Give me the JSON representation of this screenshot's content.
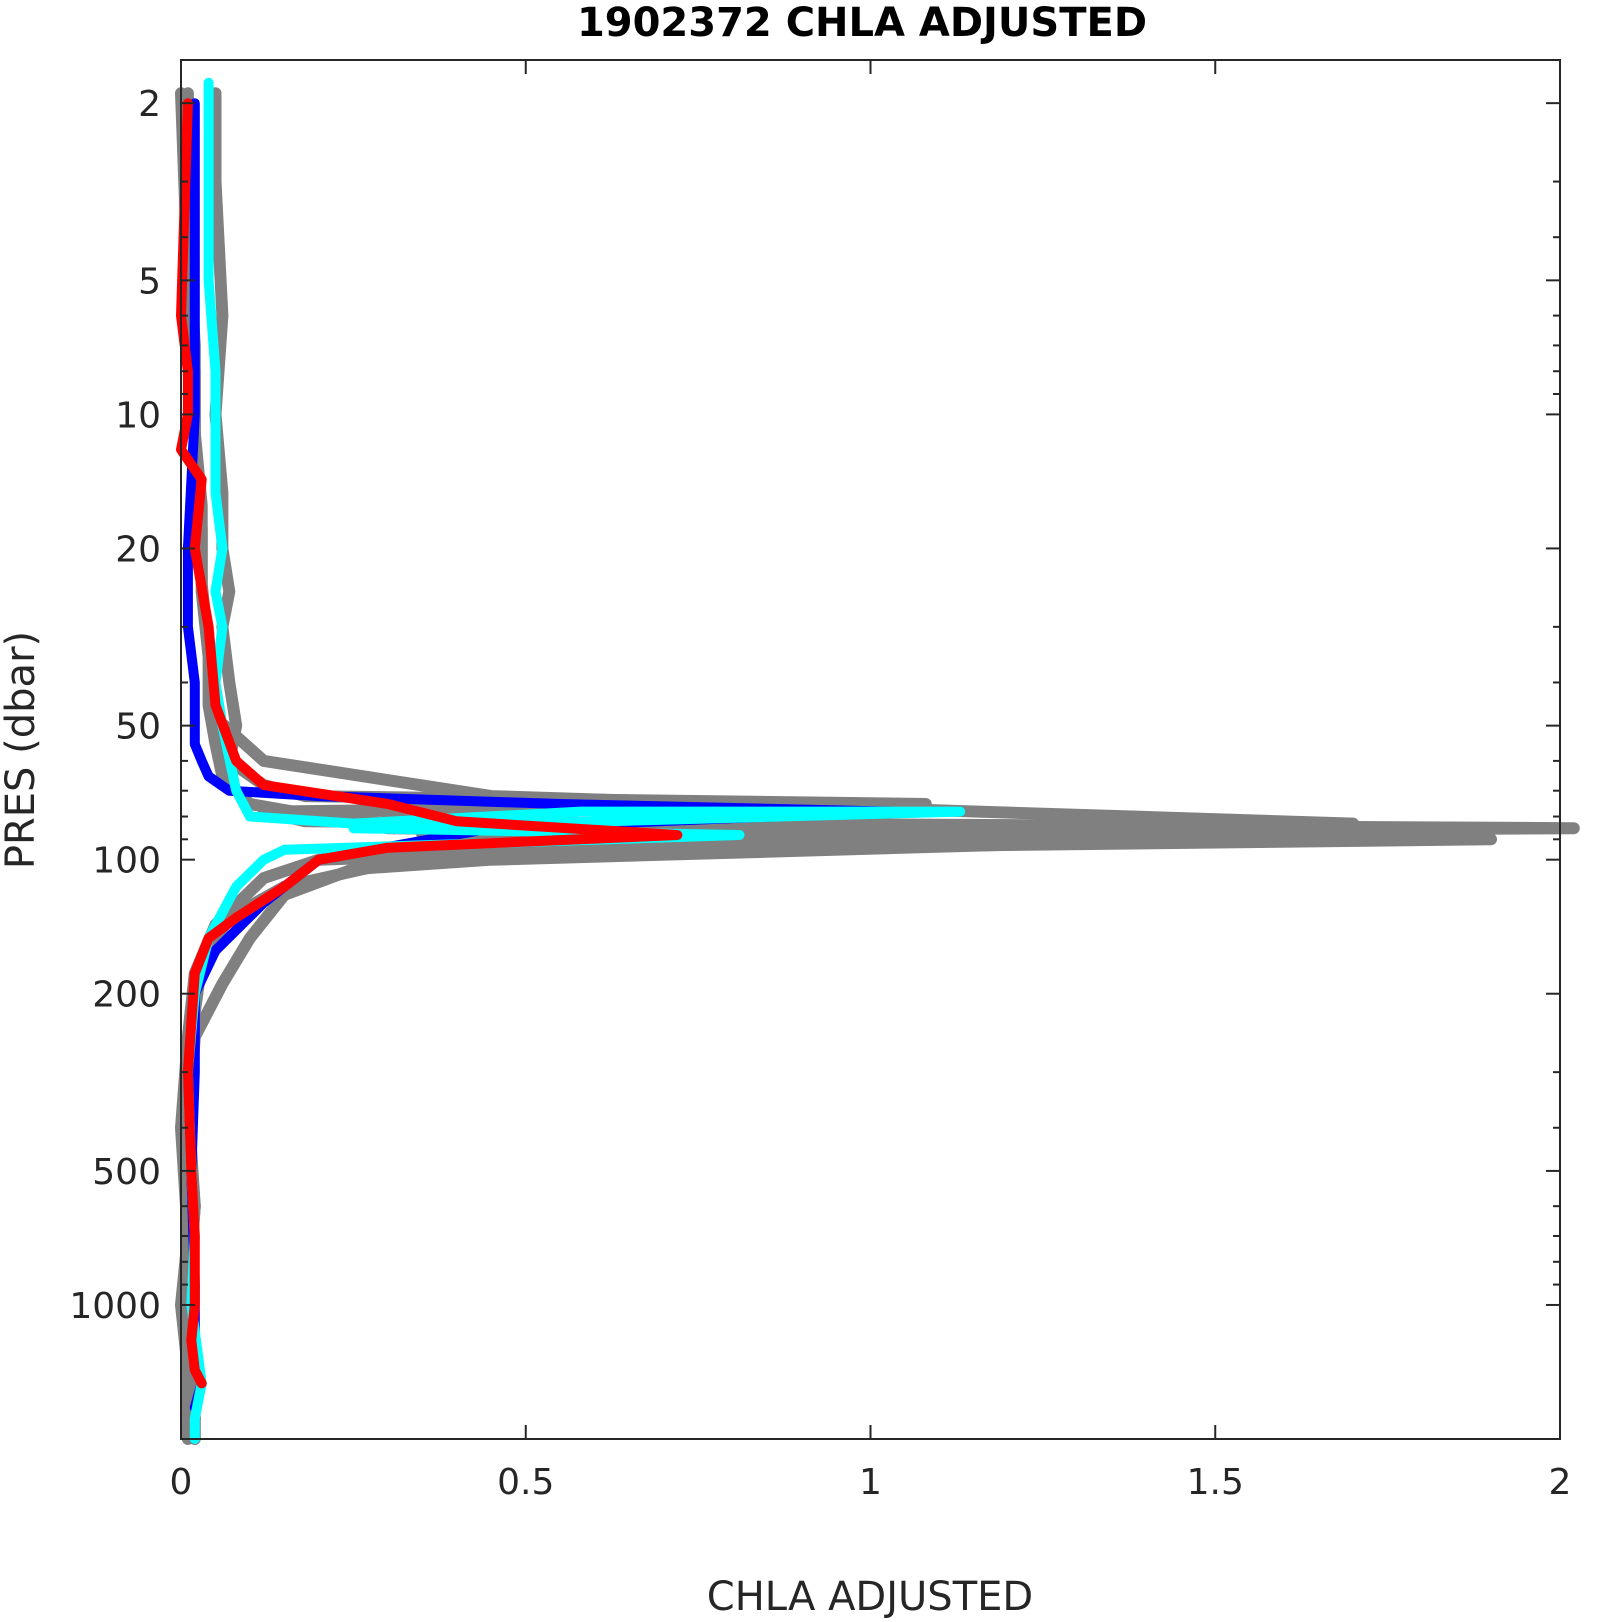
{
  "chart_data": {
    "type": "line",
    "title": "1902372  CHLA ADJUSTED",
    "xlabel": "CHLA ADJUSTED",
    "ylabel": "PRES (dbar)",
    "xlim": [
      0,
      2
    ],
    "ylim": [
      1.6,
      2000
    ],
    "yscale": "log",
    "y_reversed": true,
    "grid": false,
    "legend": "none",
    "xticks": [
      0,
      0.5,
      1,
      1.5,
      2
    ],
    "xtick_labels": [
      "0",
      "0.5",
      "1",
      "1.5",
      "2"
    ],
    "yticks": [
      2,
      5,
      10,
      20,
      50,
      100,
      200,
      500,
      1000
    ],
    "ytick_labels": [
      "2",
      "5",
      "10",
      "20",
      "50",
      "100",
      "200",
      "500",
      "1000"
    ],
    "colors": {
      "gray": "#808080",
      "blue": "#0000ff",
      "cyan": "#00ffff",
      "red": "#ff0000",
      "axis": "#262626"
    },
    "series": [
      {
        "color": "#808080",
        "width": 12,
        "x": [
          0.05,
          0.05,
          0.06,
          0.05,
          0.06,
          0.06,
          0.07,
          0.06,
          0.07,
          0.08,
          0.07,
          0.12,
          0.18,
          1.08,
          0.12,
          0.18,
          2.02,
          0.35,
          1.26,
          0.45,
          0.25,
          0.15,
          0.1,
          0.06,
          0.02,
          0.01,
          0.02,
          0.01,
          0.02,
          0.015,
          0.02,
          0.02
        ],
        "y": [
          1.9,
          3,
          6,
          10,
          15,
          20,
          25,
          30,
          40,
          50,
          60,
          68,
          72,
          75,
          78,
          82,
          85,
          88,
          92,
          100,
          105,
          120,
          150,
          190,
          250,
          400,
          600,
          900,
          1200,
          1600,
          1800,
          2000
        ]
      },
      {
        "color": "#808080",
        "width": 12,
        "x": [
          0.0,
          0.01,
          0.02,
          0.02,
          0.03,
          0.03,
          0.04,
          0.04,
          0.05,
          0.06,
          0.1,
          0.3,
          1.9,
          0.6,
          0.2,
          0.12,
          0.05,
          0.02,
          0.01,
          0.0,
          0.01,
          0.0,
          0.01,
          0.01
        ],
        "y": [
          1.9,
          5,
          8,
          12,
          18,
          25,
          35,
          45,
          55,
          65,
          75,
          85,
          90,
          95,
          100,
          110,
          140,
          180,
          250,
          400,
          700,
          1000,
          1400,
          2000
        ]
      },
      {
        "color": "#808080",
        "width": 12,
        "x": [
          0.01,
          0.01,
          0.02,
          0.02,
          0.03,
          0.03,
          0.04,
          0.05,
          0.12,
          0.45,
          1.7,
          0.68,
          0.3,
          0.15,
          0.07,
          0.03,
          0.02,
          0.01,
          0.02,
          0.01,
          0.02
        ],
        "y": [
          1.9,
          4,
          7,
          11,
          16,
          24,
          34,
          48,
          60,
          72,
          83,
          94,
          102,
          115,
          135,
          170,
          220,
          350,
          600,
          1000,
          1800
        ]
      },
      {
        "color": "#0000ff",
        "width": 10,
        "x": [
          0.02,
          0.02,
          0.02,
          0.01,
          0.01,
          0.02,
          0.02,
          0.02,
          0.03,
          0.04,
          0.07,
          0.2,
          0.55,
          1.03,
          0.45,
          0.2,
          0.12,
          0.05,
          0.02,
          0.02,
          0.015,
          0.02,
          0.02,
          0.03,
          0.02
        ],
        "y": [
          2,
          5,
          10,
          20,
          30,
          40,
          50,
          55,
          60,
          65,
          70,
          72,
          75,
          78,
          85,
          100,
          125,
          160,
          200,
          300,
          500,
          900,
          1300,
          1500,
          1700
        ]
      },
      {
        "color": "#00ffff",
        "width": 10,
        "x": [
          0.04,
          0.04,
          0.05,
          0.05,
          0.05,
          0.06,
          0.05,
          0.06,
          0.05,
          0.06,
          0.08,
          0.1,
          0.25,
          0.58,
          1.13,
          0.25,
          0.81,
          0.15,
          0.12,
          0.08,
          0.04,
          0.02,
          0.01,
          0.015,
          0.02,
          0.015,
          0.03,
          0.02,
          0.02
        ],
        "y": [
          1.8,
          5,
          8,
          10,
          15,
          20,
          25,
          30,
          40,
          50,
          70,
          80,
          83,
          78,
          78,
          85,
          88,
          95,
          100,
          115,
          150,
          200,
          300,
          500,
          700,
          1000,
          1500,
          1800,
          2000
        ]
      },
      {
        "color": "#ff0000",
        "width": 10,
        "x": [
          0.01,
          0.0,
          0.01,
          0.01,
          0.0,
          0.03,
          0.02,
          0.04,
          0.05,
          0.08,
          0.12,
          0.3,
          0.4,
          0.72,
          0.3,
          0.2,
          0.15,
          0.08,
          0.04,
          0.02,
          0.01,
          0.015,
          0.02,
          0.02,
          0.015,
          0.02,
          0.03
        ],
        "y": [
          2,
          6,
          8,
          10,
          12,
          14,
          20,
          30,
          45,
          60,
          68,
          75,
          82,
          88,
          94,
          100,
          115,
          135,
          150,
          180,
          300,
          500,
          700,
          1000,
          1200,
          1400,
          1500
        ]
      }
    ]
  }
}
